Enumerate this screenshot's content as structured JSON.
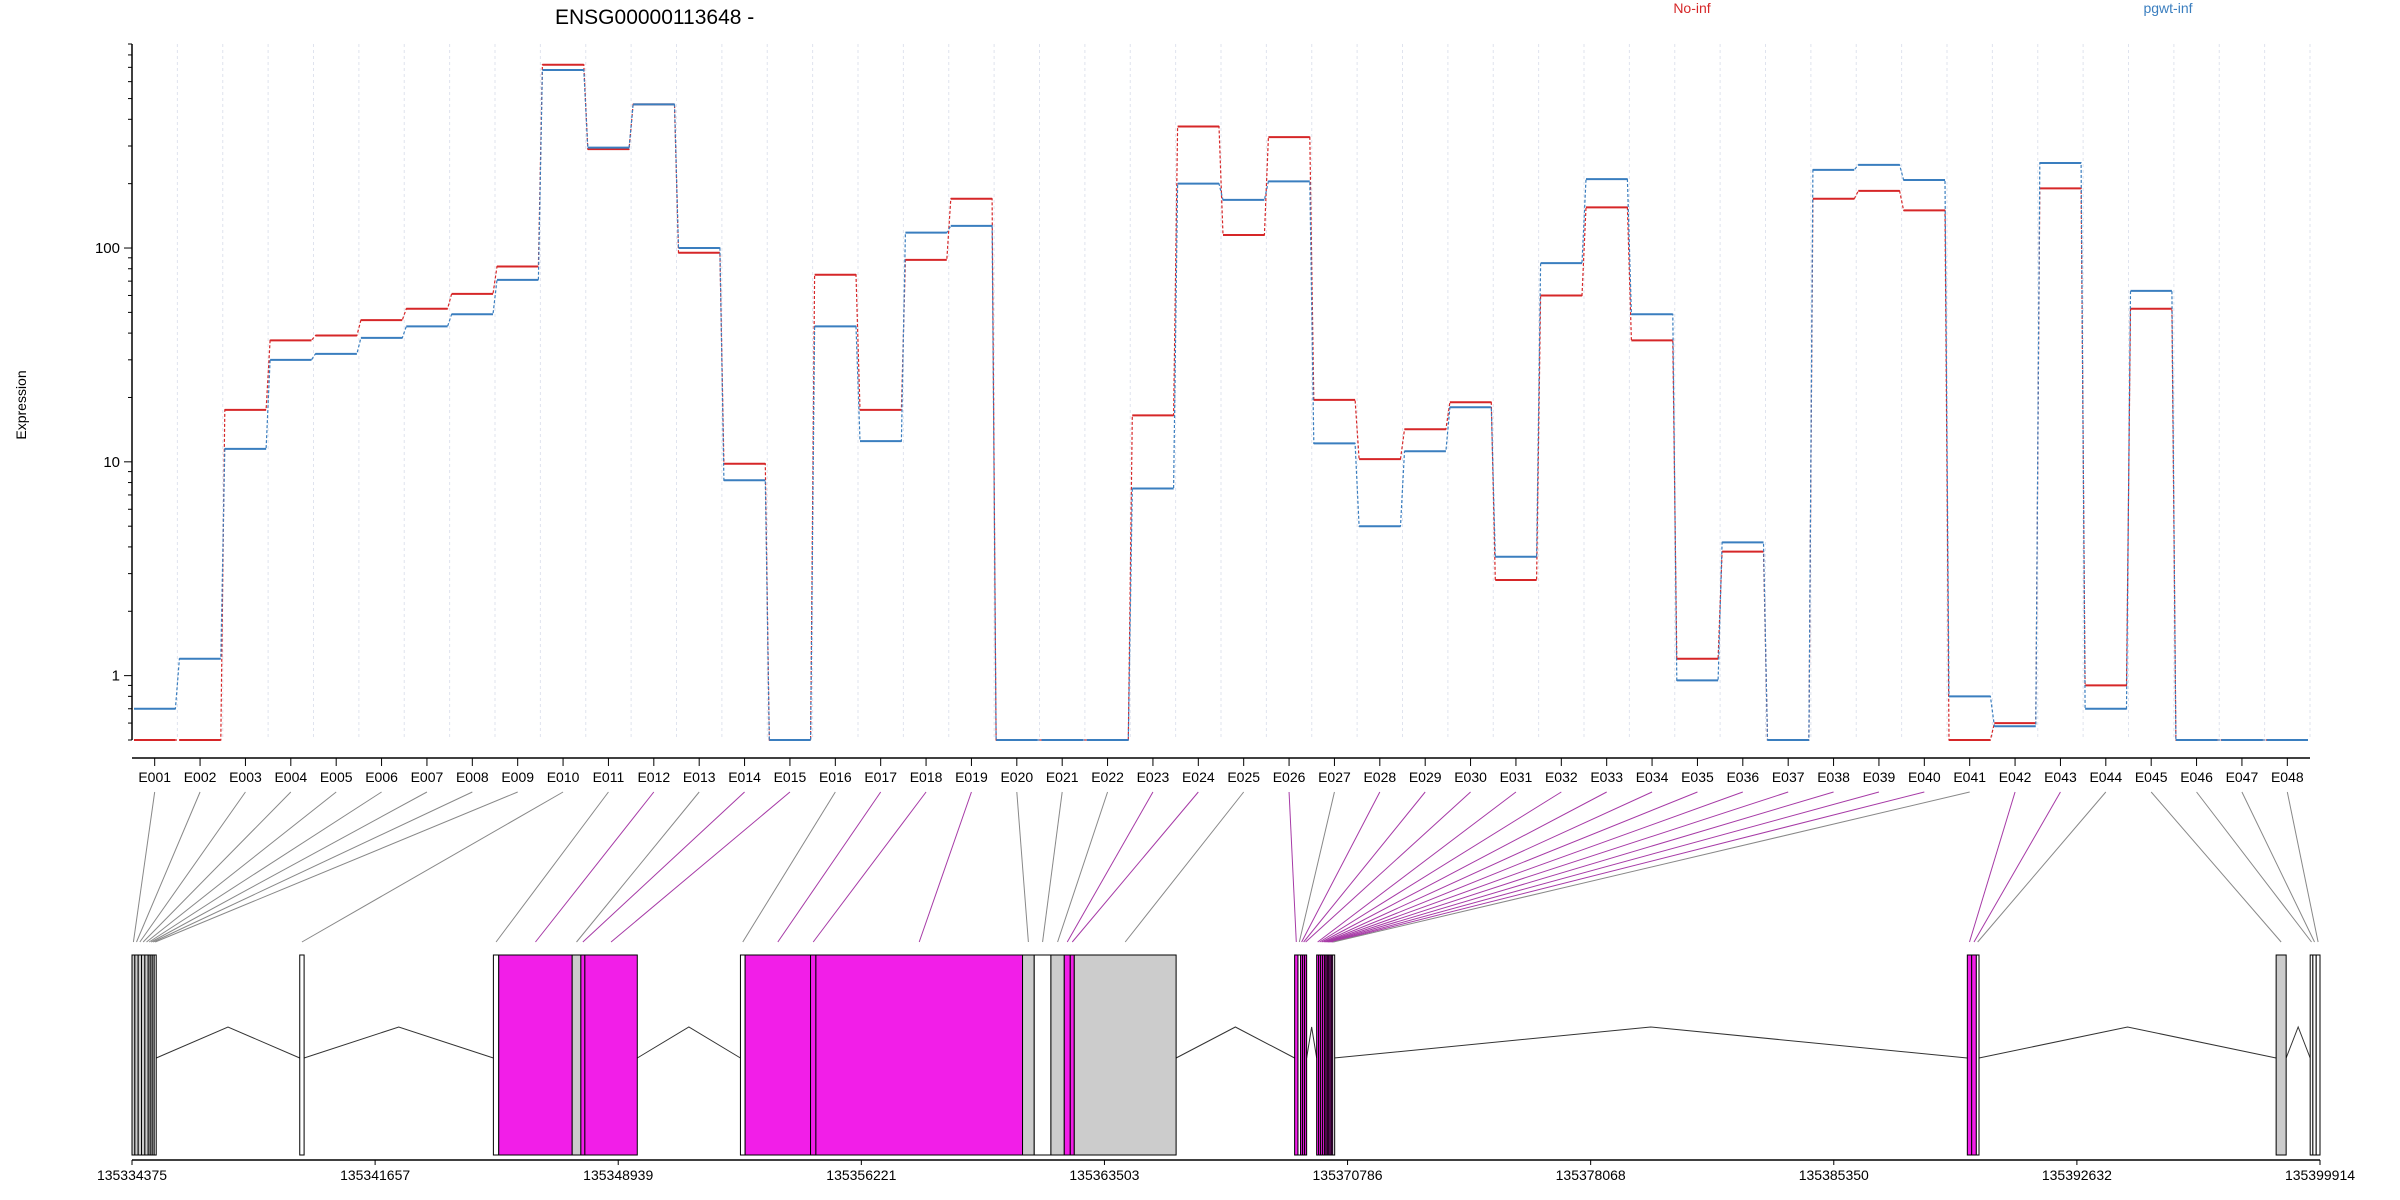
{
  "title": "ENSG00000113648 -",
  "ylabel": "Expression",
  "chart_data": {
    "type": "line",
    "title": "ENSG00000113648 -",
    "ylabel": "Expression",
    "xlabel": "",
    "yscale": "log",
    "ylim": [
      0.5,
      900
    ],
    "yticks": [
      1,
      10,
      100
    ],
    "legend_position": "top-right",
    "categories": [
      "E001",
      "E002",
      "E003",
      "E004",
      "E005",
      "E006",
      "E007",
      "E008",
      "E009",
      "E010",
      "E011",
      "E012",
      "E013",
      "E014",
      "E015",
      "E016",
      "E017",
      "E018",
      "E019",
      "E020",
      "E021",
      "E022",
      "E023",
      "E024",
      "E025",
      "E026",
      "E027",
      "E028",
      "E029",
      "E030",
      "E031",
      "E032",
      "E033",
      "E034",
      "E035",
      "E036",
      "E037",
      "E038",
      "E039",
      "E040",
      "E041",
      "E042",
      "E043",
      "E044",
      "E045",
      "E046",
      "E047",
      "E048"
    ],
    "series": [
      {
        "name": "No-inf",
        "color": "#d62728",
        "values": [
          0.5,
          0.5,
          17.5,
          37,
          39,
          46,
          52,
          61,
          82,
          720,
          290,
          470,
          95,
          9.8,
          0.5,
          75,
          17.5,
          88,
          170,
          0.5,
          0.5,
          0.5,
          16.5,
          370,
          115,
          330,
          19.5,
          10.3,
          14.2,
          19,
          2.8,
          60,
          155,
          37,
          1.2,
          3.8,
          0.5,
          170,
          185,
          150,
          0.5,
          0.6,
          190,
          0.9,
          52,
          0.5,
          0.5,
          0.5
        ]
      },
      {
        "name": "pgwt-inf",
        "color": "#3a7ebf",
        "values": [
          0.7,
          1.2,
          11.5,
          30,
          32,
          38,
          43,
          49,
          71,
          680,
          295,
          470,
          100,
          8.2,
          0.5,
          43,
          12.5,
          118,
          127,
          0.5,
          0.5,
          0.5,
          7.5,
          200,
          168,
          205,
          12.2,
          5,
          11.2,
          18,
          3.6,
          85,
          210,
          49,
          0.95,
          4.2,
          0.5,
          232,
          245,
          208,
          0.8,
          0.58,
          250,
          0.7,
          63,
          0.5,
          0.5,
          0.5
        ]
      }
    ],
    "gene_model": {
      "range": [
        135334375,
        135399914
      ],
      "tick_labels": [
        "135334375",
        "135341657",
        "135348939",
        "135356221",
        "135363503",
        "135370786",
        "135378068",
        "135385350",
        "135392632",
        "135399914"
      ],
      "exons": [
        {
          "id": "E001",
          "start": 135334375,
          "end": 135334460,
          "color": "#cccccc"
        },
        {
          "id": "E002",
          "start": 135334460,
          "end": 135334560,
          "color": "#cccccc"
        },
        {
          "id": "E003",
          "start": 135334560,
          "end": 135334660,
          "color": "#cccccc"
        },
        {
          "id": "E004",
          "start": 135334660,
          "end": 135334760,
          "color": "#cccccc"
        },
        {
          "id": "E005",
          "start": 135334760,
          "end": 135334860,
          "color": "#cccccc"
        },
        {
          "id": "E006",
          "start": 135334860,
          "end": 135334920,
          "color": "#cccccc"
        },
        {
          "id": "E007",
          "start": 135334920,
          "end": 135334980,
          "color": "#cccccc"
        },
        {
          "id": "E008",
          "start": 135334980,
          "end": 135335040,
          "color": "#cccccc"
        },
        {
          "id": "E009",
          "start": 135335040,
          "end": 135335100,
          "color": "#ffffff"
        },
        {
          "id": "E010",
          "start": 135339400,
          "end": 135339530,
          "color": "#ffffff"
        },
        {
          "id": "E011",
          "start": 135345200,
          "end": 135345360,
          "color": "#ffffff"
        },
        {
          "id": "E012",
          "start": 135345360,
          "end": 135347560,
          "color": "#f21ee8"
        },
        {
          "id": "E013",
          "start": 135347560,
          "end": 135347820,
          "color": "#cccccc"
        },
        {
          "id": "E014",
          "start": 135347820,
          "end": 135347940,
          "color": "#f21ee8"
        },
        {
          "id": "E015",
          "start": 135347940,
          "end": 135349510,
          "color": "#f21ee8"
        },
        {
          "id": "E016",
          "start": 135352600,
          "end": 135352740,
          "color": "#ffffff"
        },
        {
          "id": "E017",
          "start": 135352740,
          "end": 135354700,
          "color": "#f21ee8"
        },
        {
          "id": "E018",
          "start": 135354700,
          "end": 135354860,
          "color": "#f21ee8"
        },
        {
          "id": "E019",
          "start": 135354860,
          "end": 135361050,
          "color": "#f21ee8"
        },
        {
          "id": "E020",
          "start": 135361050,
          "end": 135361400,
          "color": "#cccccc"
        },
        {
          "id": "E021",
          "start": 135361400,
          "end": 135361900,
          "color": "#ffffff"
        },
        {
          "id": "E022",
          "start": 135361900,
          "end": 135362300,
          "color": "#cccccc"
        },
        {
          "id": "E023",
          "start": 135362300,
          "end": 135362480,
          "color": "#f21ee8"
        },
        {
          "id": "E024",
          "start": 135362480,
          "end": 135362600,
          "color": "#f21ee8"
        },
        {
          "id": "E025",
          "start": 135362600,
          "end": 135365650,
          "color": "#cccccc"
        },
        {
          "id": "E026",
          "start": 135369200,
          "end": 135369300,
          "color": "#f21ee8"
        },
        {
          "id": "E027",
          "start": 135369300,
          "end": 135369380,
          "color": "#ffffff"
        },
        {
          "id": "E028",
          "start": 135369380,
          "end": 135369440,
          "color": "#f21ee8"
        },
        {
          "id": "E029",
          "start": 135369440,
          "end": 135369500,
          "color": "#f21ee8"
        },
        {
          "id": "E030",
          "start": 135369500,
          "end": 135369560,
          "color": "#f21ee8"
        },
        {
          "id": "E031",
          "start": 135369860,
          "end": 135369920,
          "color": "#f21ee8"
        },
        {
          "id": "E032",
          "start": 135369920,
          "end": 135369980,
          "color": "#f21ee8"
        },
        {
          "id": "E033",
          "start": 135369980,
          "end": 135370040,
          "color": "#f21ee8"
        },
        {
          "id": "E034",
          "start": 135370040,
          "end": 135370100,
          "color": "#f21ee8"
        },
        {
          "id": "E035",
          "start": 135370100,
          "end": 135370140,
          "color": "#f21ee8"
        },
        {
          "id": "E036",
          "start": 135370140,
          "end": 135370180,
          "color": "#f21ee8"
        },
        {
          "id": "E037",
          "start": 135370180,
          "end": 135370220,
          "color": "#f21ee8"
        },
        {
          "id": "E038",
          "start": 135370220,
          "end": 135370260,
          "color": "#f21ee8"
        },
        {
          "id": "E039",
          "start": 135370260,
          "end": 135370300,
          "color": "#f21ee8"
        },
        {
          "id": "E040",
          "start": 135370300,
          "end": 135370340,
          "color": "#f21ee8"
        },
        {
          "id": "E041",
          "start": 135370340,
          "end": 135370380,
          "color": "#ffffff"
        },
        {
          "id": "E042",
          "start": 135389350,
          "end": 135389480,
          "color": "#f21ee8"
        },
        {
          "id": "E043",
          "start": 135389480,
          "end": 135389620,
          "color": "#f21ee8"
        },
        {
          "id": "E044",
          "start": 135389620,
          "end": 135389700,
          "color": "#ffffff"
        },
        {
          "id": "E045",
          "start": 135398600,
          "end": 135398900,
          "color": "#cccccc"
        },
        {
          "id": "E046",
          "start": 135399620,
          "end": 135399700,
          "color": "#ffffff"
        },
        {
          "id": "E047",
          "start": 135399700,
          "end": 135399800,
          "color": "#ffffff"
        },
        {
          "id": "E048",
          "start": 135399800,
          "end": 135399914,
          "color": "#ffffff"
        }
      ]
    }
  }
}
